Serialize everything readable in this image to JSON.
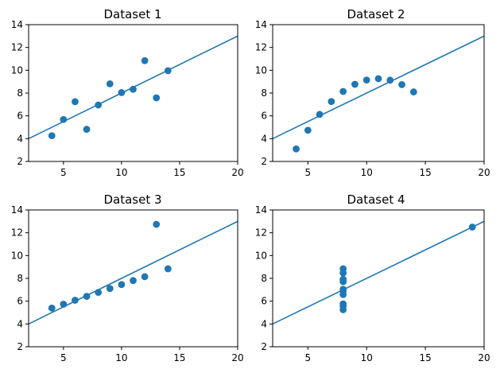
{
  "chart_data": [
    {
      "type": "scatter",
      "title": "Dataset 1",
      "xlabel": "",
      "ylabel": "",
      "xlim": [
        2,
        20
      ],
      "ylim": [
        2,
        14
      ],
      "xticks": [
        5,
        10,
        15,
        20
      ],
      "yticks": [
        2,
        4,
        6,
        8,
        10,
        12,
        14
      ],
      "grid": false,
      "series": [
        {
          "name": "points",
          "x": [
            10,
            8,
            13,
            9,
            11,
            14,
            6,
            4,
            12,
            7,
            5
          ],
          "y": [
            8.04,
            6.95,
            7.58,
            8.81,
            8.33,
            9.96,
            7.24,
            4.26,
            10.84,
            4.82,
            5.68
          ]
        }
      ],
      "fit_line": {
        "x": [
          2,
          20
        ],
        "y": [
          4,
          13
        ]
      }
    },
    {
      "type": "scatter",
      "title": "Dataset 2",
      "xlabel": "",
      "ylabel": "",
      "xlim": [
        2,
        20
      ],
      "ylim": [
        2,
        14
      ],
      "xticks": [
        5,
        10,
        15,
        20
      ],
      "yticks": [
        2,
        4,
        6,
        8,
        10,
        12,
        14
      ],
      "grid": false,
      "series": [
        {
          "name": "points",
          "x": [
            10,
            8,
            13,
            9,
            11,
            14,
            6,
            4,
            12,
            7,
            5
          ],
          "y": [
            9.14,
            8.14,
            8.74,
            8.77,
            9.26,
            8.1,
            6.13,
            3.1,
            9.13,
            7.26,
            4.74
          ]
        }
      ],
      "fit_line": {
        "x": [
          2,
          20
        ],
        "y": [
          4,
          13
        ]
      }
    },
    {
      "type": "scatter",
      "title": "Dataset 3",
      "xlabel": "",
      "ylabel": "",
      "xlim": [
        2,
        20
      ],
      "ylim": [
        2,
        14
      ],
      "xticks": [
        5,
        10,
        15,
        20
      ],
      "yticks": [
        2,
        4,
        6,
        8,
        10,
        12,
        14
      ],
      "grid": false,
      "series": [
        {
          "name": "points",
          "x": [
            10,
            8,
            13,
            9,
            11,
            14,
            6,
            4,
            12,
            7,
            5
          ],
          "y": [
            7.46,
            6.77,
            12.74,
            7.11,
            7.81,
            8.84,
            6.08,
            5.39,
            8.15,
            6.42,
            5.73
          ]
        }
      ],
      "fit_line": {
        "x": [
          2,
          20
        ],
        "y": [
          4,
          13
        ]
      }
    },
    {
      "type": "scatter",
      "title": "Dataset 4",
      "xlabel": "",
      "ylabel": "",
      "xlim": [
        2,
        20
      ],
      "ylim": [
        2,
        14
      ],
      "xticks": [
        5,
        10,
        15,
        20
      ],
      "yticks": [
        2,
        4,
        6,
        8,
        10,
        12,
        14
      ],
      "grid": false,
      "series": [
        {
          "name": "points",
          "x": [
            8,
            8,
            8,
            8,
            8,
            8,
            8,
            19,
            8,
            8,
            8
          ],
          "y": [
            6.58,
            5.76,
            7.71,
            8.84,
            8.47,
            7.04,
            5.25,
            12.5,
            5.56,
            7.91,
            6.89
          ]
        }
      ],
      "fit_line": {
        "x": [
          2,
          20
        ],
        "y": [
          4,
          13
        ]
      }
    }
  ],
  "colors": {
    "series": "#1f77b4",
    "axis": "#000000",
    "background": "#ffffff"
  }
}
